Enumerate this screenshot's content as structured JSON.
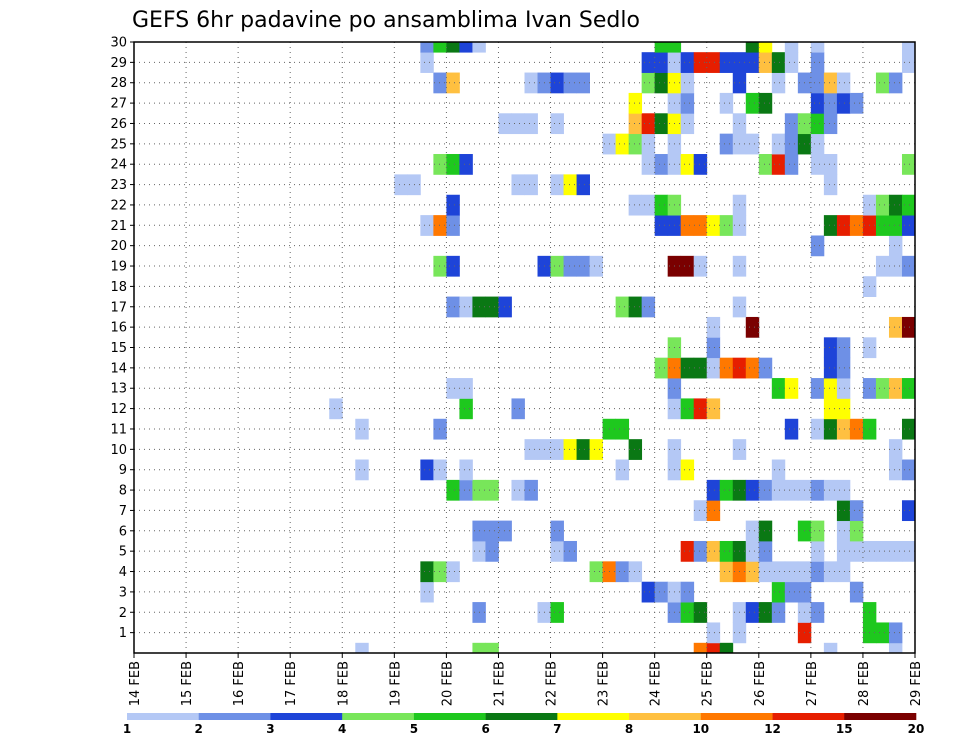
{
  "chart_data": {
    "type": "heatmap",
    "title": "GEFS 6hr padavine po ansamblima Ivan Sedlo",
    "y_tick_labels": [
      "1",
      "2",
      "3",
      "4",
      "5",
      "6",
      "7",
      "8",
      "9",
      "10",
      "11",
      "12",
      "13",
      "14",
      "15",
      "16",
      "17",
      "18",
      "19",
      "20",
      "21",
      "22",
      "23",
      "24",
      "25",
      "26",
      "27",
      "28",
      "29",
      "30"
    ],
    "x_tick_labels": [
      "14 FEB",
      "15 FEB",
      "16 FEB",
      "17 FEB",
      "18 FEB",
      "19 FEB",
      "20 FEB",
      "21 FEB",
      "22 FEB",
      "23 FEB",
      "24 FEB",
      "25 FEB",
      "26 FEB",
      "27 FEB",
      "28 FEB",
      "29 FEB"
    ],
    "x_range_days": [
      14,
      29
    ],
    "y_range_members": [
      0,
      30
    ],
    "grid": true,
    "colorbar": {
      "tick_labels": [
        "1",
        "2",
        "3",
        "4",
        "5",
        "6",
        "7",
        "8",
        "10",
        "12",
        "15",
        "20"
      ],
      "colors": [
        "#b4c8f5",
        "#6e90e6",
        "#1e44d8",
        "#78e65a",
        "#1ec81e",
        "#0a7814",
        "#ffff00",
        "#ffc040",
        "#ff7800",
        "#e61e00",
        "#7a0000"
      ]
    },
    "cells": [
      [
        0,
        20.5,
        4
      ],
      [
        0,
        20.75,
        4
      ],
      [
        0,
        24.75,
        9
      ],
      [
        0,
        25,
        10
      ],
      [
        0,
        25.25,
        6
      ],
      [
        0,
        18.25,
        1
      ],
      [
        0,
        27.25,
        1
      ],
      [
        0,
        28.5,
        1
      ],
      [
        1,
        25,
        1
      ],
      [
        1,
        25.5,
        1
      ],
      [
        1,
        26.75,
        10
      ],
      [
        1,
        28,
        5
      ],
      [
        1,
        28.25,
        5
      ],
      [
        1,
        28.5,
        2
      ],
      [
        2,
        20.5,
        2
      ],
      [
        2,
        21.75,
        1
      ],
      [
        2,
        22,
        5
      ],
      [
        2,
        24.25,
        2
      ],
      [
        2,
        24.5,
        5
      ],
      [
        2,
        24.75,
        6
      ],
      [
        2,
        25.5,
        1
      ],
      [
        2,
        25.75,
        3
      ],
      [
        2,
        26,
        6
      ],
      [
        2,
        26.25,
        2
      ],
      [
        2,
        26.75,
        1
      ],
      [
        2,
        27,
        2
      ],
      [
        2,
        28,
        5
      ],
      [
        3,
        19.5,
        1
      ],
      [
        3,
        23.75,
        3
      ],
      [
        3,
        24,
        2
      ],
      [
        3,
        24.25,
        1
      ],
      [
        3,
        24.5,
        2
      ],
      [
        3,
        26.25,
        5
      ],
      [
        3,
        26.5,
        2
      ],
      [
        3,
        26.75,
        2
      ],
      [
        3,
        27.75,
        2
      ],
      [
        4,
        19.5,
        6
      ],
      [
        4,
        19.75,
        4
      ],
      [
        4,
        20,
        1
      ],
      [
        4,
        22.75,
        4
      ],
      [
        4,
        23,
        9
      ],
      [
        4,
        23.25,
        2
      ],
      [
        4,
        23.5,
        1
      ],
      [
        4,
        25.25,
        8
      ],
      [
        4,
        25.5,
        9
      ],
      [
        4,
        25.75,
        8
      ],
      [
        4,
        26,
        1
      ],
      [
        4,
        26.25,
        1
      ],
      [
        4,
        26.5,
        1
      ],
      [
        4,
        26.75,
        1
      ],
      [
        4,
        27,
        2
      ],
      [
        4,
        27.25,
        1
      ],
      [
        4,
        27.5,
        1
      ],
      [
        5,
        20.5,
        1
      ],
      [
        5,
        20.75,
        2
      ],
      [
        5,
        22,
        1
      ],
      [
        5,
        22.25,
        2
      ],
      [
        5,
        24.5,
        10
      ],
      [
        5,
        24.75,
        2
      ],
      [
        5,
        25,
        8
      ],
      [
        5,
        25.25,
        5
      ],
      [
        5,
        25.5,
        6
      ],
      [
        5,
        25.75,
        1
      ],
      [
        5,
        26,
        2
      ],
      [
        5,
        27,
        1
      ],
      [
        5,
        27.5,
        1
      ],
      [
        5,
        27.75,
        1
      ],
      [
        5,
        28,
        1
      ],
      [
        5,
        28.25,
        1
      ],
      [
        5,
        28.5,
        1
      ],
      [
        5,
        28.75,
        1
      ],
      [
        6,
        20.5,
        2
      ],
      [
        6,
        20.75,
        2
      ],
      [
        6,
        21,
        2
      ],
      [
        6,
        22,
        2
      ],
      [
        6,
        25.75,
        1
      ],
      [
        6,
        26,
        6
      ],
      [
        6,
        26.75,
        5
      ],
      [
        6,
        27,
        4
      ],
      [
        6,
        27.5,
        1
      ],
      [
        6,
        27.75,
        4
      ],
      [
        7,
        24.75,
        1
      ],
      [
        7,
        25,
        9
      ],
      [
        7,
        27.5,
        6
      ],
      [
        7,
        27.75,
        2
      ],
      [
        7,
        28.75,
        3
      ],
      [
        8,
        20,
        5
      ],
      [
        8,
        20.25,
        2
      ],
      [
        8,
        20.5,
        4
      ],
      [
        8,
        20.75,
        4
      ],
      [
        8,
        21.25,
        1
      ],
      [
        8,
        21.5,
        2
      ],
      [
        8,
        25,
        3
      ],
      [
        8,
        25.25,
        5
      ],
      [
        8,
        25.5,
        6
      ],
      [
        8,
        25.75,
        3
      ],
      [
        8,
        26,
        2
      ],
      [
        8,
        26.25,
        1
      ],
      [
        8,
        26.5,
        1
      ],
      [
        8,
        26.75,
        1
      ],
      [
        8,
        27,
        2
      ],
      [
        8,
        27.25,
        1
      ],
      [
        8,
        27.5,
        1
      ],
      [
        9,
        18.25,
        1
      ],
      [
        9,
        19.5,
        3
      ],
      [
        9,
        19.75,
        1
      ],
      [
        9,
        20.25,
        1
      ],
      [
        9,
        23.25,
        1
      ],
      [
        9,
        24.25,
        1
      ],
      [
        9,
        24.5,
        7
      ],
      [
        9,
        26.25,
        1
      ],
      [
        9,
        28.5,
        1
      ],
      [
        9,
        28.75,
        2
      ],
      [
        10,
        21.5,
        1
      ],
      [
        10,
        21.75,
        1
      ],
      [
        10,
        22,
        1
      ],
      [
        10,
        22.25,
        7
      ],
      [
        10,
        22.5,
        6
      ],
      [
        10,
        22.75,
        7
      ],
      [
        10,
        23.5,
        6
      ],
      [
        10,
        24.25,
        1
      ],
      [
        10,
        25.5,
        1
      ],
      [
        10,
        28.5,
        1
      ],
      [
        11,
        18.25,
        1
      ],
      [
        11,
        19.75,
        2
      ],
      [
        11,
        23,
        5
      ],
      [
        11,
        23.25,
        5
      ],
      [
        11,
        26.5,
        3
      ],
      [
        11,
        27,
        1
      ],
      [
        11,
        27.25,
        6
      ],
      [
        11,
        27.5,
        8
      ],
      [
        11,
        27.75,
        9
      ],
      [
        11,
        28,
        5
      ],
      [
        11,
        28.75,
        6
      ],
      [
        12,
        17.75,
        1
      ],
      [
        12,
        20.25,
        5
      ],
      [
        12,
        21.25,
        2
      ],
      [
        12,
        24.25,
        1
      ],
      [
        12,
        24.5,
        5
      ],
      [
        12,
        24.75,
        10
      ],
      [
        12,
        25,
        8
      ],
      [
        12,
        27.25,
        7
      ],
      [
        12,
        27.5,
        7
      ],
      [
        13,
        20,
        1
      ],
      [
        13,
        20.25,
        1
      ],
      [
        13,
        24.25,
        2
      ],
      [
        13,
        26.25,
        5
      ],
      [
        13,
        26.5,
        7
      ],
      [
        13,
        27,
        2
      ],
      [
        13,
        27.25,
        7
      ],
      [
        13,
        27.5,
        1
      ],
      [
        13,
        28,
        2
      ],
      [
        13,
        28.25,
        4
      ],
      [
        13,
        28.5,
        8
      ],
      [
        13,
        28.75,
        5
      ],
      [
        14,
        24,
        4
      ],
      [
        14,
        24.25,
        9
      ],
      [
        14,
        24.5,
        6
      ],
      [
        14,
        24.75,
        6
      ],
      [
        14,
        25,
        1
      ],
      [
        14,
        25.25,
        9
      ],
      [
        14,
        25.5,
        10
      ],
      [
        14,
        25.75,
        9
      ],
      [
        14,
        26,
        2
      ],
      [
        14,
        27.25,
        3
      ],
      [
        14,
        27.5,
        2
      ],
      [
        15,
        24.25,
        4
      ],
      [
        15,
        25,
        2
      ],
      [
        15,
        27.25,
        3
      ],
      [
        15,
        27.5,
        2
      ],
      [
        15,
        28,
        1
      ],
      [
        16,
        25,
        1
      ],
      [
        16,
        25.75,
        11
      ],
      [
        16,
        28.5,
        8
      ],
      [
        16,
        28.75,
        11
      ],
      [
        17,
        20,
        2
      ],
      [
        17,
        20.25,
        1
      ],
      [
        17,
        20.5,
        6
      ],
      [
        17,
        20.75,
        6
      ],
      [
        17,
        21,
        3
      ],
      [
        17,
        23.25,
        4
      ],
      [
        17,
        23.5,
        6
      ],
      [
        17,
        23.75,
        2
      ],
      [
        17,
        25.5,
        1
      ],
      [
        18,
        28,
        1
      ],
      [
        19,
        19.75,
        4
      ],
      [
        19,
        20,
        3
      ],
      [
        19,
        21.75,
        3
      ],
      [
        19,
        22,
        4
      ],
      [
        19,
        22.25,
        2
      ],
      [
        19,
        22.5,
        2
      ],
      [
        19,
        22.75,
        1
      ],
      [
        19,
        24.25,
        11
      ],
      [
        19,
        24.5,
        11
      ],
      [
        19,
        24.75,
        1
      ],
      [
        19,
        25.5,
        1
      ],
      [
        19,
        28.25,
        1
      ],
      [
        19,
        28.5,
        1
      ],
      [
        19,
        28.75,
        2
      ],
      [
        20,
        27,
        2
      ],
      [
        20,
        28.5,
        1
      ],
      [
        21,
        19.5,
        1
      ],
      [
        21,
        19.75,
        9
      ],
      [
        21,
        20,
        2
      ],
      [
        21,
        24,
        3
      ],
      [
        21,
        24.25,
        3
      ],
      [
        21,
        24.5,
        9
      ],
      [
        21,
        24.75,
        9
      ],
      [
        21,
        25,
        7
      ],
      [
        21,
        25.25,
        4
      ],
      [
        21,
        25.5,
        1
      ],
      [
        21,
        27.25,
        6
      ],
      [
        21,
        27.5,
        10
      ],
      [
        21,
        27.75,
        9
      ],
      [
        21,
        28,
        10
      ],
      [
        21,
        28.25,
        5
      ],
      [
        21,
        28.5,
        5
      ],
      [
        21,
        28.75,
        3
      ],
      [
        22,
        20,
        3
      ],
      [
        22,
        23.5,
        1
      ],
      [
        22,
        23.75,
        1
      ],
      [
        22,
        24,
        5
      ],
      [
        22,
        24.25,
        4
      ],
      [
        22,
        25.5,
        1
      ],
      [
        22,
        28,
        1
      ],
      [
        22,
        28.25,
        4
      ],
      [
        22,
        28.5,
        6
      ],
      [
        22,
        28.75,
        5
      ],
      [
        23,
        19,
        1
      ],
      [
        23,
        19.25,
        1
      ],
      [
        23,
        21.25,
        1
      ],
      [
        23,
        21.5,
        1
      ],
      [
        23,
        22,
        1
      ],
      [
        23,
        22.25,
        7
      ],
      [
        23,
        22.5,
        3
      ],
      [
        23,
        27.25,
        1
      ],
      [
        24,
        19.75,
        4
      ],
      [
        24,
        20,
        5
      ],
      [
        24,
        20.25,
        3
      ],
      [
        24,
        23.75,
        1
      ],
      [
        24,
        24,
        2
      ],
      [
        24,
        24.25,
        1
      ],
      [
        24,
        24.5,
        7
      ],
      [
        24,
        24.75,
        3
      ],
      [
        24,
        26,
        4
      ],
      [
        24,
        26.25,
        10
      ],
      [
        24,
        26.5,
        2
      ],
      [
        24,
        27,
        1
      ],
      [
        24,
        27.25,
        1
      ],
      [
        24,
        28.75,
        4
      ],
      [
        25,
        23,
        1
      ],
      [
        25,
        23.25,
        7
      ],
      [
        25,
        23.5,
        4
      ],
      [
        25,
        23.75,
        1
      ],
      [
        25,
        24.25,
        1
      ],
      [
        25,
        25.25,
        2
      ],
      [
        25,
        25.5,
        1
      ],
      [
        25,
        25.75,
        1
      ],
      [
        25,
        26.25,
        1
      ],
      [
        25,
        26.5,
        2
      ],
      [
        25,
        26.75,
        6
      ],
      [
        25,
        27,
        1
      ],
      [
        26,
        21,
        1
      ],
      [
        26,
        21.25,
        1
      ],
      [
        26,
        21.5,
        1
      ],
      [
        26,
        22,
        1
      ],
      [
        26,
        23.5,
        8
      ],
      [
        26,
        23.75,
        10
      ],
      [
        26,
        24,
        6
      ],
      [
        26,
        24.25,
        7
      ],
      [
        26,
        24.5,
        1
      ],
      [
        26,
        25.5,
        1
      ],
      [
        26,
        26.5,
        2
      ],
      [
        26,
        26.75,
        4
      ],
      [
        26,
        27,
        5
      ],
      [
        26,
        27.25,
        2
      ],
      [
        27,
        23.5,
        7
      ],
      [
        27,
        24.25,
        1
      ],
      [
        27,
        24.5,
        2
      ],
      [
        27,
        25.25,
        1
      ],
      [
        27,
        25.75,
        5
      ],
      [
        27,
        26,
        6
      ],
      [
        27,
        27,
        3
      ],
      [
        27,
        27.25,
        2
      ],
      [
        27,
        27.5,
        3
      ],
      [
        27,
        27.75,
        2
      ],
      [
        28,
        19.75,
        2
      ],
      [
        28,
        20,
        8
      ],
      [
        28,
        21.5,
        1
      ],
      [
        28,
        21.75,
        2
      ],
      [
        28,
        22,
        3
      ],
      [
        28,
        22.25,
        2
      ],
      [
        28,
        22.5,
        2
      ],
      [
        28,
        23.75,
        4
      ],
      [
        28,
        24,
        6
      ],
      [
        28,
        24.25,
        7
      ],
      [
        28,
        24.5,
        1
      ],
      [
        28,
        25.5,
        3
      ],
      [
        28,
        26.25,
        1
      ],
      [
        28,
        26.75,
        2
      ],
      [
        28,
        27,
        2
      ],
      [
        28,
        27.25,
        8
      ],
      [
        28,
        27.5,
        1
      ],
      [
        28,
        28.25,
        4
      ],
      [
        28,
        28.5,
        2
      ],
      [
        29,
        19.5,
        1
      ],
      [
        29,
        23.75,
        3
      ],
      [
        29,
        24,
        3
      ],
      [
        29,
        24.25,
        1
      ],
      [
        29,
        24.5,
        3
      ],
      [
        29,
        24.75,
        10
      ],
      [
        29,
        25,
        10
      ],
      [
        29,
        25.25,
        3
      ],
      [
        29,
        25.5,
        3
      ],
      [
        29,
        25.75,
        3
      ],
      [
        29,
        26,
        8
      ],
      [
        29,
        26.25,
        6
      ],
      [
        29,
        26.5,
        1
      ],
      [
        29,
        27,
        2
      ],
      [
        29,
        28.75,
        1
      ],
      [
        30,
        19.5,
        2
      ],
      [
        30,
        19.75,
        5
      ],
      [
        30,
        20,
        6
      ],
      [
        30,
        20.25,
        3
      ],
      [
        30,
        20.5,
        1
      ],
      [
        30,
        24,
        5
      ],
      [
        30,
        24.25,
        5
      ],
      [
        30,
        25.75,
        6
      ],
      [
        30,
        26,
        7
      ],
      [
        30,
        26.5,
        1
      ],
      [
        30,
        27,
        1
      ],
      [
        30,
        28.75,
        1
      ]
    ]
  }
}
